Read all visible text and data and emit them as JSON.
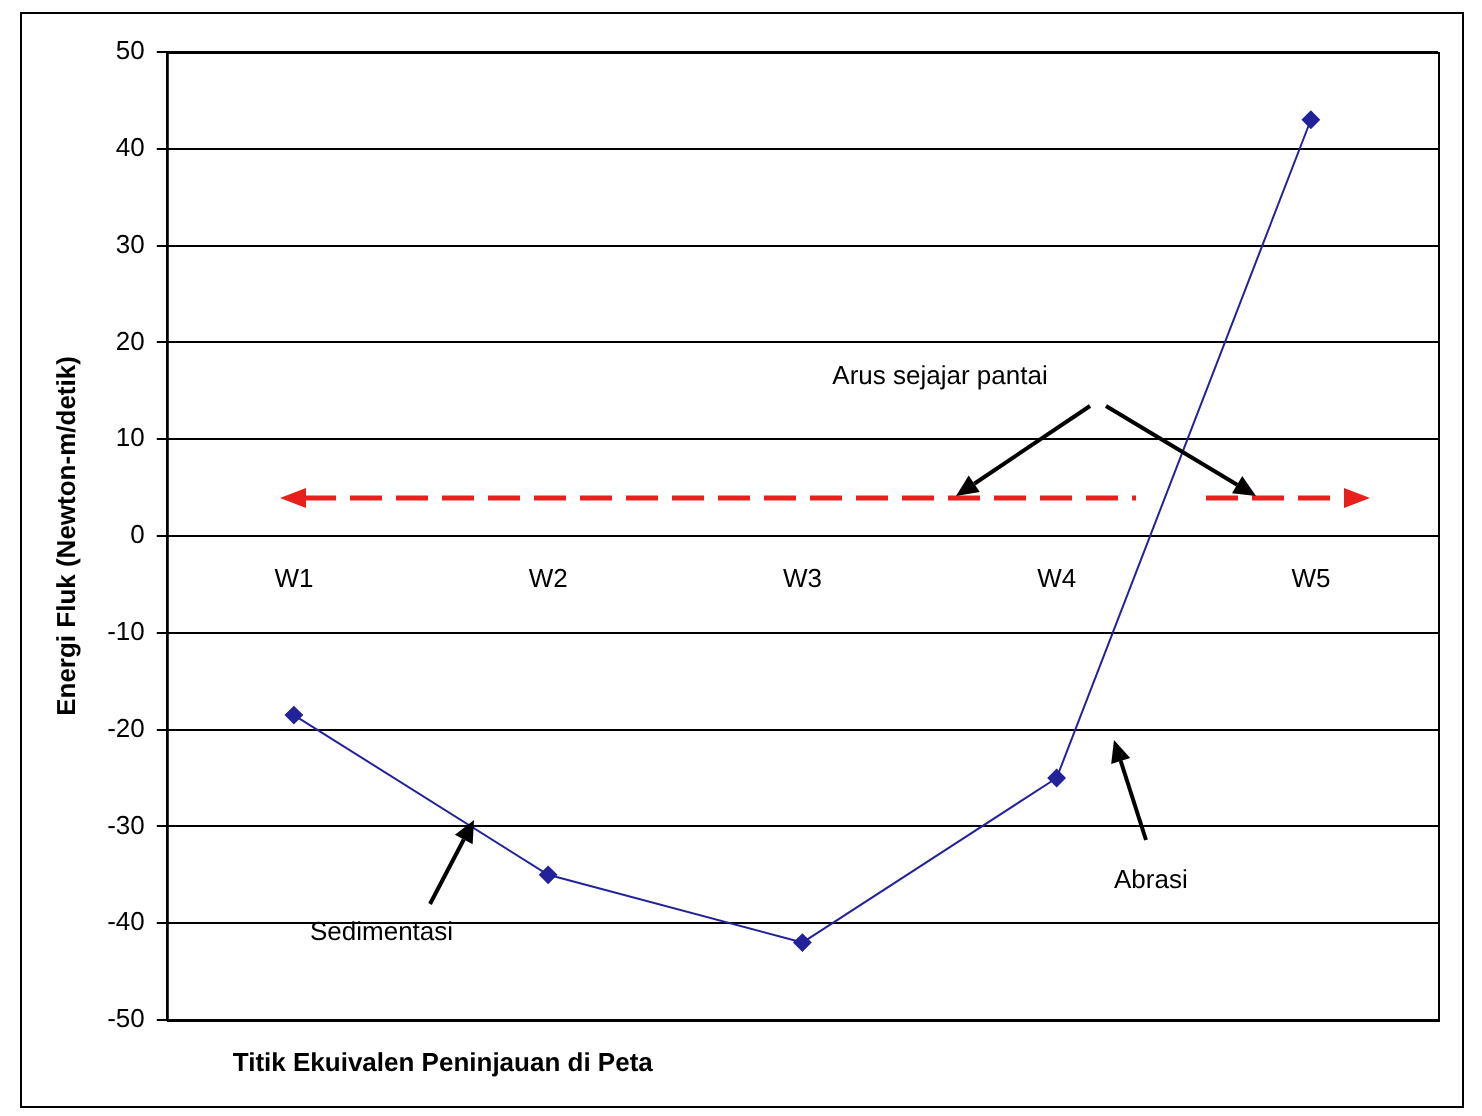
{
  "chart_data": {
    "type": "line",
    "xlabel": "Titik Ekuivalen Peninjauan di Peta",
    "ylabel": "Energi Fluk (Newton-m/detik)",
    "categories": [
      "W1",
      "W2",
      "W3",
      "W4",
      "W5"
    ],
    "series": [
      {
        "color": "#22229a",
        "values": [
          -18.5,
          -35,
          -42,
          -25,
          43
        ]
      }
    ],
    "ylim": [
      -50,
      50
    ],
    "yticks": [
      -50,
      -40,
      -30,
      -20,
      -10,
      0,
      10,
      20,
      30,
      40,
      50
    ],
    "grid": "y",
    "legend": false,
    "marker": "diamond",
    "line_style": "solid",
    "annotations": [
      "Arus sejajar pantai",
      "Sedimentasi",
      "Abrasi"
    ]
  }
}
